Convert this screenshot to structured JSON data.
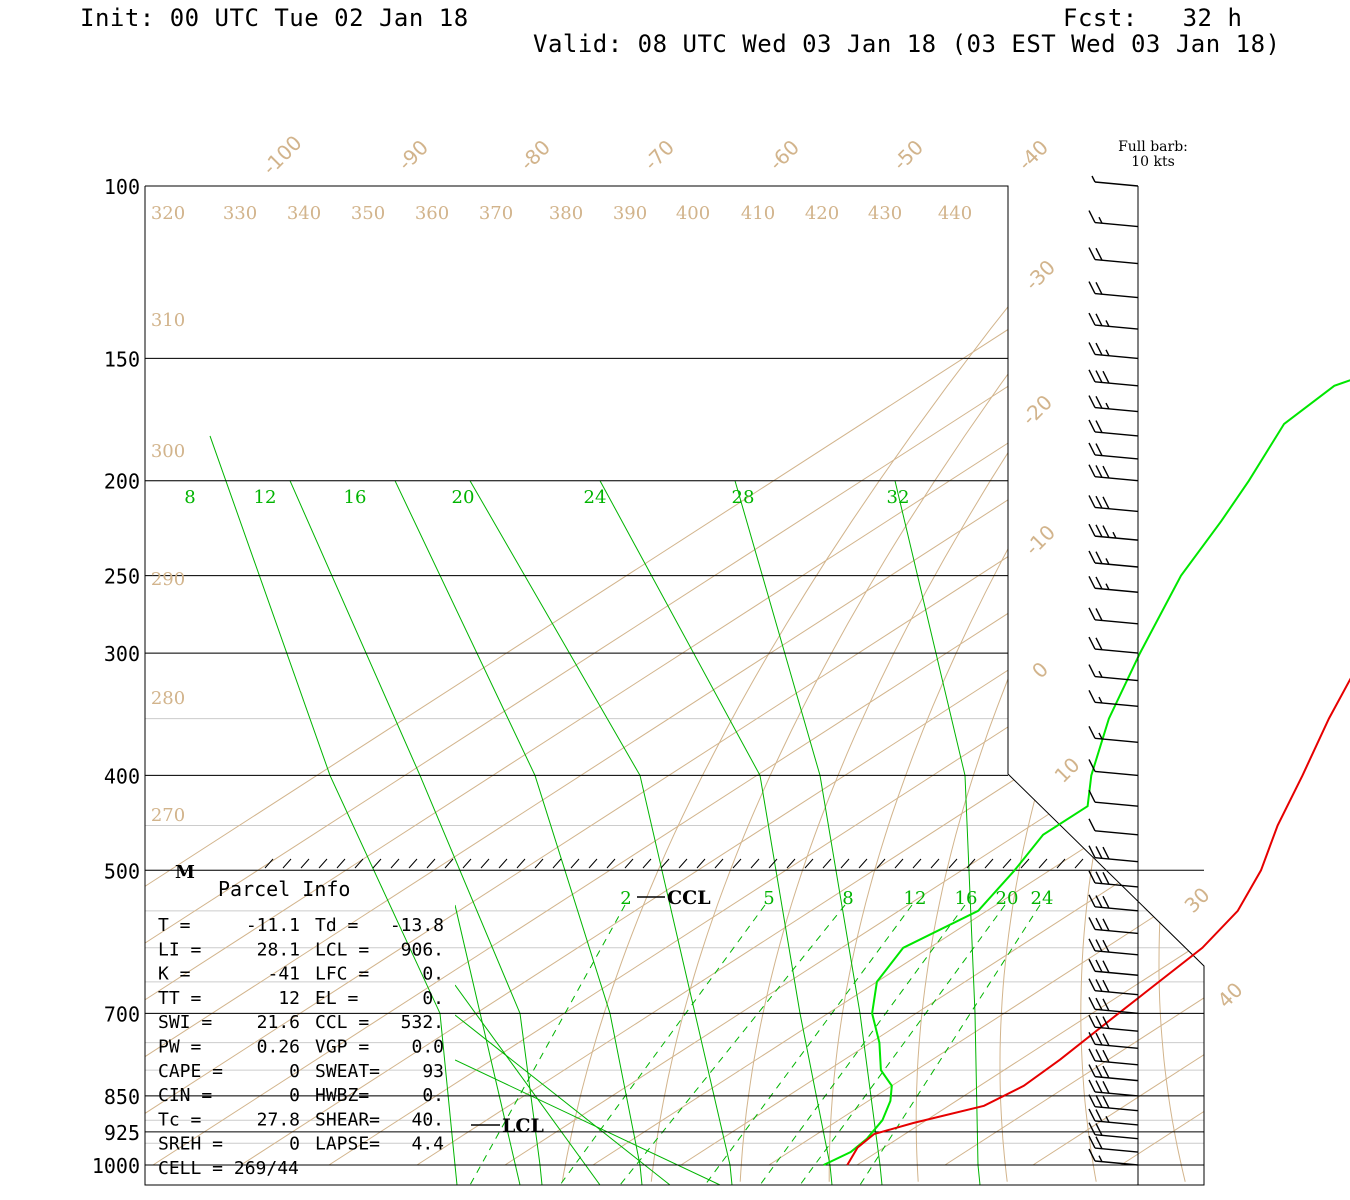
{
  "header": {
    "init": "Init: 00 UTC Tue 02 Jan 18",
    "fcst": "Fcst:   32 h",
    "valid": "Valid: 08 UTC Wed 03 Jan 18 (03 EST Wed 03 Jan 18)"
  },
  "barb_legend": {
    "line1": "Full barb:",
    "line2": "10 kts"
  },
  "labels": {
    "marker_m": "M",
    "ccl": "CCL",
    "lcl": "LCL",
    "parcel_title": "Parcel Info"
  },
  "colors": {
    "temperature": "#e60000",
    "dewpoint": "#00e600",
    "isotherm": "#d2b48c",
    "mixing_ratio": "#00b400",
    "frame": "#000000"
  },
  "chart_data": {
    "type": "skew-t",
    "pressure_labels": [
      "100",
      "150",
      "200",
      "250",
      "300",
      "400",
      "500",
      "700",
      "850",
      "925",
      "1000"
    ],
    "skew_temp_labels": [
      "-100",
      "-90",
      "-80",
      "-70",
      "-60",
      "-50",
      "-40",
      "-30",
      "-20",
      "-10",
      "0",
      "10",
      "30",
      "40"
    ],
    "theta_labels": [
      "320",
      "330",
      "340",
      "350",
      "360",
      "370",
      "380",
      "390",
      "400",
      "410",
      "420",
      "430",
      "440"
    ],
    "theta_left_labels": [
      "310",
      "300",
      "290",
      "280",
      "270"
    ],
    "mixing_ratio_upper": [
      "8",
      "12",
      "16",
      "20",
      "24",
      "28",
      "32"
    ],
    "mixing_ratio_lower": [
      "2",
      "5",
      "8",
      "12",
      "16",
      "20",
      "24"
    ],
    "temperature_profile": [
      {
        "p": 100,
        "t": -58.5
      },
      {
        "p": 110,
        "t": -61
      },
      {
        "p": 130,
        "t": -62
      },
      {
        "p": 150,
        "t": -63
      },
      {
        "p": 170,
        "t": -61
      },
      {
        "p": 200,
        "t": -58
      },
      {
        "p": 220,
        "t": -55.5
      },
      {
        "p": 240,
        "t": -52
      },
      {
        "p": 260,
        "t": -50
      },
      {
        "p": 280,
        "t": -46
      },
      {
        "p": 300,
        "t": -42.5
      },
      {
        "p": 350,
        "t": -35
      },
      {
        "p": 400,
        "t": -28
      },
      {
        "p": 450,
        "t": -22
      },
      {
        "p": 500,
        "t": -16
      },
      {
        "p": 550,
        "t": -11.5
      },
      {
        "p": 600,
        "t": -9
      },
      {
        "p": 700,
        "t": -7
      },
      {
        "p": 780,
        "t": -5.5
      },
      {
        "p": 830,
        "t": -5
      },
      {
        "p": 870,
        "t": -6
      },
      {
        "p": 906,
        "t": -11
      },
      {
        "p": 930,
        "t": -13.5
      },
      {
        "p": 960,
        "t": -13
      },
      {
        "p": 1000,
        "t": -11.1
      }
    ],
    "dewpoint_profile": [
      {
        "p": 100,
        "t": -72
      },
      {
        "p": 110,
        "t": -77
      },
      {
        "p": 130,
        "t": -84
      },
      {
        "p": 150,
        "t": -89
      },
      {
        "p": 160,
        "t": -93
      },
      {
        "p": 175,
        "t": -92
      },
      {
        "p": 200,
        "t": -86
      },
      {
        "p": 220,
        "t": -82
      },
      {
        "p": 250,
        "t": -77
      },
      {
        "p": 300,
        "t": -68
      },
      {
        "p": 350,
        "t": -60
      },
      {
        "p": 400,
        "t": -52
      },
      {
        "p": 430,
        "t": -47
      },
      {
        "p": 460,
        "t": -47
      },
      {
        "p": 500,
        "t": -44
      },
      {
        "p": 550,
        "t": -41
      },
      {
        "p": 600,
        "t": -43
      },
      {
        "p": 650,
        "t": -40
      },
      {
        "p": 700,
        "t": -35
      },
      {
        "p": 750,
        "t": -29
      },
      {
        "p": 800,
        "t": -24
      },
      {
        "p": 830,
        "t": -20
      },
      {
        "p": 860,
        "t": -17.5
      },
      {
        "p": 900,
        "t": -15
      },
      {
        "p": 940,
        "t": -13.5
      },
      {
        "p": 970,
        "t": -13
      },
      {
        "p": 1000,
        "t": -13.8
      }
    ],
    "winds": [
      {
        "p": 100,
        "barbs": 0.5
      },
      {
        "p": 110,
        "barbs": 1.5
      },
      {
        "p": 120,
        "barbs": 2
      },
      {
        "p": 130,
        "barbs": 2
      },
      {
        "p": 140,
        "barbs": 2.5
      },
      {
        "p": 150,
        "barbs": 2.5
      },
      {
        "p": 160,
        "barbs": 3
      },
      {
        "p": 170,
        "barbs": 2.5
      },
      {
        "p": 180,
        "barbs": 2
      },
      {
        "p": 190,
        "barbs": 2
      },
      {
        "p": 200,
        "barbs": 3
      },
      {
        "p": 215,
        "barbs": 3
      },
      {
        "p": 230,
        "barbs": 3.5
      },
      {
        "p": 245,
        "barbs": 2.5
      },
      {
        "p": 260,
        "barbs": 2.5
      },
      {
        "p": 280,
        "barbs": 2
      },
      {
        "p": 300,
        "barbs": 2
      },
      {
        "p": 320,
        "barbs": 1.5
      },
      {
        "p": 340,
        "barbs": 1.5
      },
      {
        "p": 370,
        "barbs": 1.5
      },
      {
        "p": 400,
        "barbs": 1
      },
      {
        "p": 430,
        "barbs": 1
      },
      {
        "p": 460,
        "barbs": 1
      },
      {
        "p": 490,
        "barbs": 3
      },
      {
        "p": 520,
        "barbs": 3
      },
      {
        "p": 550,
        "barbs": 3
      },
      {
        "p": 580,
        "barbs": 3
      },
      {
        "p": 610,
        "barbs": 3
      },
      {
        "p": 640,
        "barbs": 3
      },
      {
        "p": 670,
        "barbs": 3
      },
      {
        "p": 700,
        "barbs": 3
      },
      {
        "p": 730,
        "barbs": 3
      },
      {
        "p": 760,
        "barbs": 3
      },
      {
        "p": 790,
        "barbs": 3
      },
      {
        "p": 820,
        "barbs": 3
      },
      {
        "p": 850,
        "barbs": 3
      },
      {
        "p": 880,
        "barbs": 3
      },
      {
        "p": 910,
        "barbs": 2.5
      },
      {
        "p": 940,
        "barbs": 2
      },
      {
        "p": 970,
        "barbs": 2
      },
      {
        "p": 1000,
        "barbs": 1.5
      }
    ]
  },
  "parcel_info": {
    "left": [
      {
        "label": "T  =",
        "value": "-11.1"
      },
      {
        "label": "LI =",
        "value": "28.1"
      },
      {
        "label": "K  =",
        "value": "-41"
      },
      {
        "label": "TT =",
        "value": "12"
      },
      {
        "label": "SWI =",
        "value": "21.6"
      },
      {
        "label": "PW =",
        "value": "0.26"
      },
      {
        "label": "CAPE =",
        "value": "0"
      },
      {
        "label": "CIN =",
        "value": "0"
      },
      {
        "label": "Tc =",
        "value": "27.8"
      },
      {
        "label": "SREH =",
        "value": "0"
      },
      {
        "label": "CELL = 269/44",
        "value": ""
      }
    ],
    "right": [
      {
        "label": "Td =",
        "value": "-13.8"
      },
      {
        "label": "LCL =",
        "value": "906."
      },
      {
        "label": "LFC =",
        "value": "0."
      },
      {
        "label": "EL  =",
        "value": "0."
      },
      {
        "label": "CCL =",
        "value": "532."
      },
      {
        "label": "VGP =",
        "value": "0.0"
      },
      {
        "label": "SWEAT=",
        "value": "93"
      },
      {
        "label": "HWBZ=",
        "value": "0."
      },
      {
        "label": "SHEAR=",
        "value": "40."
      },
      {
        "label": "LAPSE=",
        "value": "4.4"
      },
      {
        "label": "",
        "value": ""
      }
    ]
  }
}
